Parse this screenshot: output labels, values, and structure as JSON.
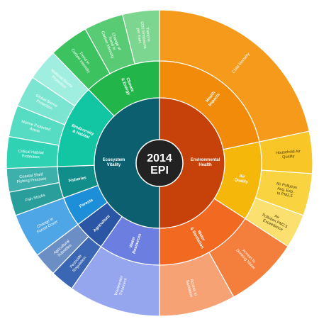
{
  "center": {
    "line1": "2014",
    "line2": "EPI",
    "color": "#222222"
  },
  "objectives": [
    {
      "label": "Ecosystem Vitality",
      "color": "#0c5f6f"
    },
    {
      "label": "Environmental Health",
      "color": "#c7410a"
    }
  ],
  "issue_categories": [
    {
      "label": "Health Impacts",
      "color": "#f28a0a"
    },
    {
      "label": "Air Quality",
      "color": "#f5b80a"
    },
    {
      "label": "Water & Sanitation",
      "color": "#f26a22"
    },
    {
      "label": "Water Resources",
      "color": "#6c7fe0"
    },
    {
      "label": "Agriculture",
      "color": "#2b56a6"
    },
    {
      "label": "Forests",
      "color": "#1d8fd9"
    },
    {
      "label": "Fisheries",
      "color": "#128e8a"
    },
    {
      "label": "Biodiversity & Habitat",
      "color": "#12c6a4"
    },
    {
      "label": "Climate & Energy",
      "color": "#22b54a"
    }
  ],
  "indicators": [
    {
      "label": "Child Mortality",
      "color": "#f59a1a"
    },
    {
      "label": "Household Air Quality",
      "color": "#f8c626"
    },
    {
      "label": "Air Pollution Avg. Exp. to PM2.5",
      "color": "#f9d440"
    },
    {
      "label": "Air Pollution PM2.5 Exceedance",
      "color": "#fbe070"
    },
    {
      "label": "Access to Drinking Water",
      "color": "#f47e3c"
    },
    {
      "label": "Access to Sanitation",
      "color": "#f7a274"
    },
    {
      "label": "Wastewater Treatment",
      "color": "#95a6ee"
    },
    {
      "label": "Pesticide Regulation",
      "color": "#3a66b3"
    },
    {
      "label": "Agricultural Subsidies",
      "color": "#6b8ec4"
    },
    {
      "label": "Change in Forest Cover",
      "color": "#4fa6e6"
    },
    {
      "label": "Fish Stocks",
      "color": "#2a9e9a"
    },
    {
      "label": "Coastal Shelf Fishing Pressure",
      "color": "#3eb0ab"
    },
    {
      "label": "Critical Habitat Protection",
      "color": "#2fd3b3"
    },
    {
      "label": "Marine Protected Areas",
      "color": "#55dcc2"
    },
    {
      "label": "Global Biome Protection",
      "color": "#7ce5d1"
    },
    {
      "label": "National Biome Protection",
      "color": "#a0eee0"
    },
    {
      "label": "Trend in Carbon Intensity",
      "color": "#3cc25f"
    },
    {
      "label": "Change of Trend in Carbon Intensity",
      "color": "#5acb75"
    },
    {
      "label": "Trend in CO2 Emissions per KwH",
      "color": "#7dd690"
    }
  ]
}
